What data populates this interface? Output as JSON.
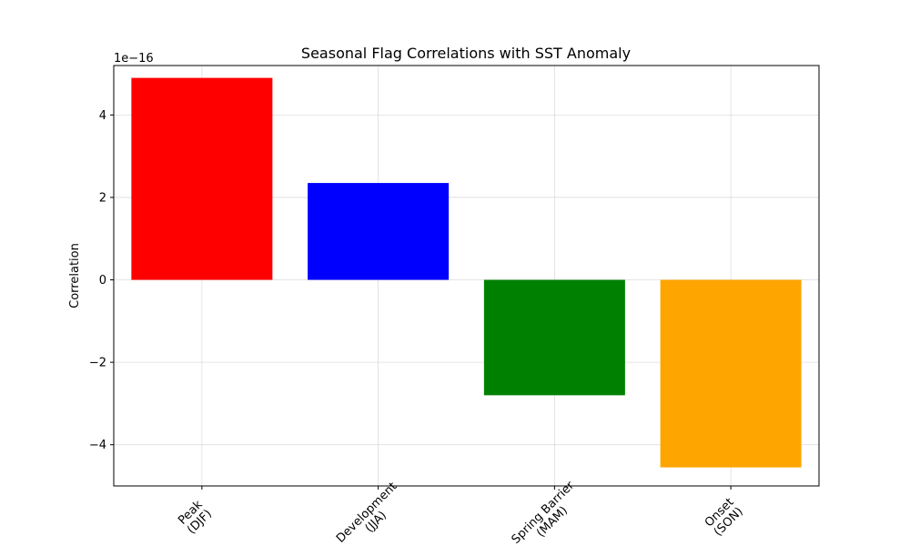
{
  "chart_data": {
    "type": "bar",
    "title": "Seasonal Flag Correlations with SST Anomaly",
    "xlabel": "",
    "ylabel": "Correlation",
    "offset_label": "1e−16",
    "scale_exponent": -16,
    "categories": [
      "Peak\n(DJF)",
      "Development\n(JJA)",
      "Spring Barrier\n(MAM)",
      "Onset\n(SON)"
    ],
    "values": [
      4.9e-16,
      2.35e-16,
      -2.8e-16,
      -4.55e-16
    ],
    "colors": [
      "#ff0000",
      "#0000ff",
      "#008000",
      "#ffa500"
    ],
    "ylim": [
      -5e-16,
      5.2e-16
    ],
    "yticks": [
      -4e-16,
      -2e-16,
      0,
      2e-16,
      4e-16
    ],
    "ytick_labels": [
      "−4",
      "−2",
      "0",
      "2",
      "4"
    ],
    "grid": true,
    "xtick_rotation": 45
  }
}
